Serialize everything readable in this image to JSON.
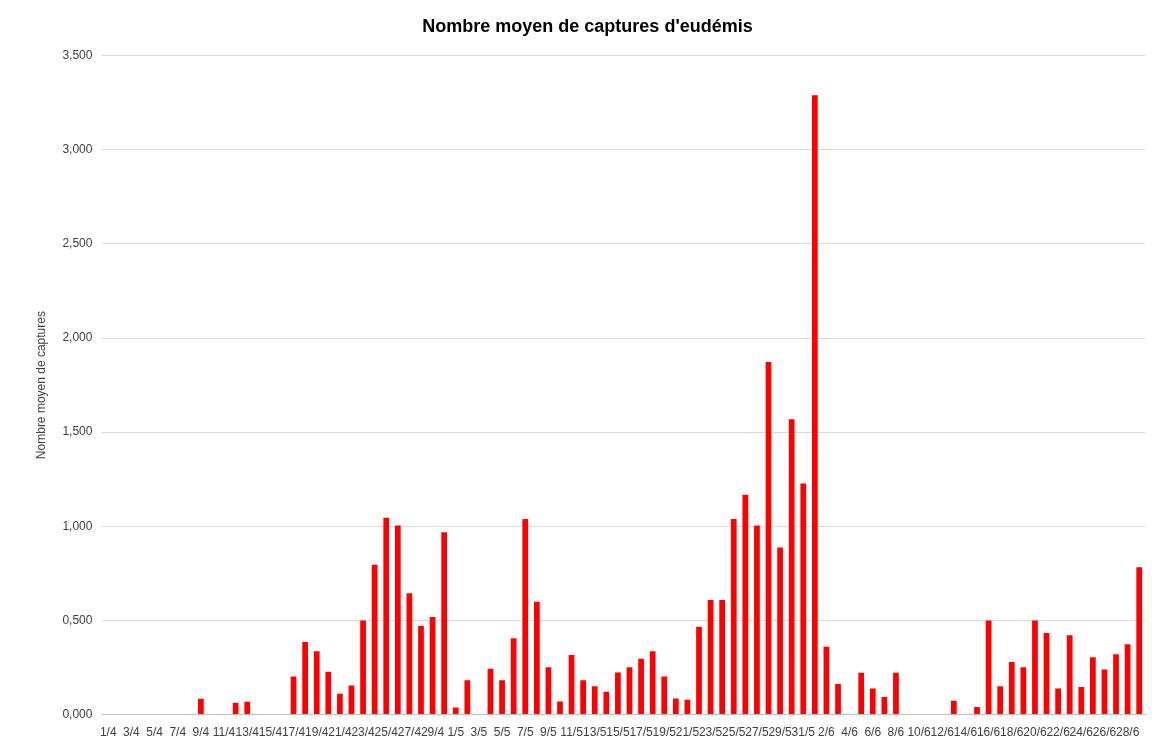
{
  "chart_data": {
    "type": "bar",
    "title": "Nombre moyen de captures d'eudémis",
    "ylabel": "Nombre moyen de captures",
    "categories": [
      "1/4",
      null,
      "3/4",
      null,
      "5/4",
      null,
      "7/4",
      null,
      "9/4",
      null,
      "11/4",
      null,
      "13/4",
      null,
      "15/4",
      null,
      "17/4",
      null,
      "19/4",
      null,
      "21/4",
      null,
      "23/4",
      null,
      "25/4",
      null,
      "27/4",
      null,
      "29/4",
      null,
      "1/5",
      null,
      "3/5",
      null,
      "5/5",
      null,
      "7/5",
      null,
      "9/5",
      null,
      "11/5",
      null,
      "13/5",
      null,
      "15/5",
      null,
      "17/5",
      null,
      "19/5",
      null,
      "21/5",
      null,
      "23/5",
      null,
      "25/5",
      null,
      "27/5",
      null,
      "29/5",
      null,
      "31/5",
      null,
      "2/6",
      null,
      "4/6",
      null,
      "6/6",
      null,
      "8/6",
      null,
      "10/6",
      null,
      "12/6",
      null,
      "14/6",
      null,
      "16/6",
      null,
      "18/6",
      null,
      "20/6",
      null,
      "22/6",
      null,
      "24/6",
      null,
      "26/6",
      null,
      "28/6",
      null
    ],
    "values": [
      0,
      0,
      0,
      0,
      0,
      0,
      0,
      0,
      0.084,
      0,
      0,
      0.063,
      0.068,
      0,
      0,
      0,
      0.203,
      0.385,
      0.337,
      0.228,
      0.111,
      0.154,
      0.5,
      0.796,
      1.045,
      1.004,
      0.645,
      0.47,
      0.518,
      0.968,
      0.038,
      0.183,
      0,
      0.244,
      0.183,
      0.405,
      1.039,
      0.6,
      0.251,
      0.07,
      0.317,
      0.183,
      0.151,
      0.122,
      0.224,
      0.251,
      0.296,
      0.337,
      0.203,
      0.086,
      0.079,
      0.466,
      0.609,
      0.609,
      1.039,
      1.168,
      1.004,
      1.873,
      0.887,
      1.568,
      1.228,
      3.29,
      0.36,
      0.163,
      0,
      0.222,
      0.138,
      0.093,
      0.222,
      0,
      0,
      0,
      0,
      0.073,
      0,
      0.041,
      0.5,
      0.151,
      0.28,
      0.251,
      0.5,
      0.434,
      0.138,
      0.421,
      0.147,
      0.305,
      0.24,
      0.321,
      0.373,
      0.783
    ],
    "color": "#ff0000",
    "ylim": [
      0,
      3.5
    ],
    "yticks": [
      {
        "value": 0,
        "label": "0,000"
      },
      {
        "value": 0.5,
        "label": "0,500"
      },
      {
        "value": 1,
        "label": "1,000"
      },
      {
        "value": 1.5,
        "label": "1,500"
      },
      {
        "value": 2,
        "label": "2,000"
      },
      {
        "value": 2.5,
        "label": "2,500"
      },
      {
        "value": 3,
        "label": "3,000"
      },
      {
        "value": 3.5,
        "label": "3,500"
      }
    ],
    "grid": "y"
  }
}
